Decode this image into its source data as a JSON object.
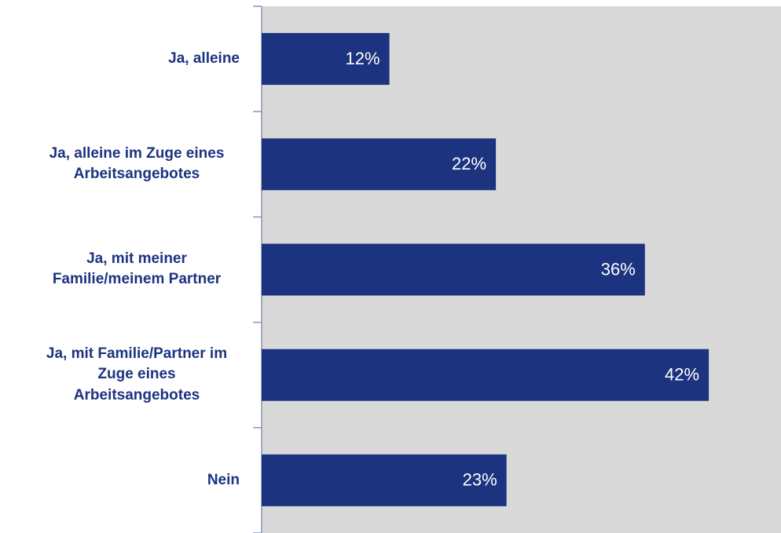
{
  "chart_data": {
    "type": "bar",
    "orientation": "horizontal",
    "categories": [
      "Ja, alleine",
      "Ja, alleine im Zuge eines Arbeitsangebotes",
      "Ja, mit meiner Familie/meinem Partner",
      "Ja, mit Familie/Partner im Zuge eines Arbeitsangebotes",
      "Nein"
    ],
    "values": [
      12,
      22,
      36,
      42,
      23
    ],
    "value_labels": [
      "12%",
      "22%",
      "36%",
      "42%",
      "23%"
    ],
    "color": "#1c3380"
  }
}
